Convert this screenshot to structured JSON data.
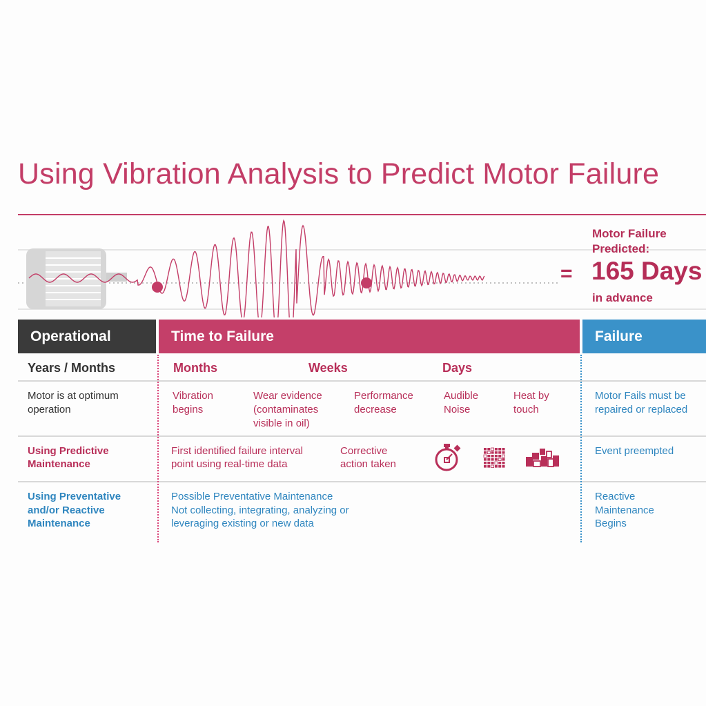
{
  "title": "Using Vibration Analysis to Predict Motor Failure",
  "prediction": {
    "label": "Motor Failure\nPredicted:",
    "equals": "=",
    "value": "165 Days",
    "sub": "in advance"
  },
  "headers": {
    "operational": "Operational",
    "time_to_failure": "Time to Failure",
    "failure": "Failure"
  },
  "scale_row": {
    "label": "Years / Months",
    "months": "Months",
    "weeks": "Weeks",
    "days": "Days"
  },
  "stages_row": {
    "label": "Motor is at optimum\noperation",
    "stages": [
      "Vibration\nbegins",
      "Wear evidence\n(contaminates\nvisible in oil)",
      "Performance\ndecrease",
      "Audible\nNoise",
      "Heat by\ntouch"
    ],
    "failure": "Motor Fails must be\nrepaired or replaced"
  },
  "predictive_row": {
    "label": "Using Predictive\nMaintenance",
    "first_point": "First identified failure interval\npoint using real-time data",
    "corrective": "Corrective\naction taken",
    "icons": [
      "stopwatch-icon",
      "grid-icon",
      "blocks-icon"
    ],
    "failure": "Event preempted"
  },
  "preventative_row": {
    "label": "Using Preventative\nand/or Reactive\nMaintenance",
    "text": "Possible Preventative Maintenance\nNot collecting, integrating, analyzing or\nleveraging existing or new data",
    "failure": "Reactive\nMaintenance\nBegins"
  },
  "colors": {
    "accent_red": "#c43f69",
    "accent_blue": "#3a92c9",
    "dark": "#3a3a3a"
  }
}
